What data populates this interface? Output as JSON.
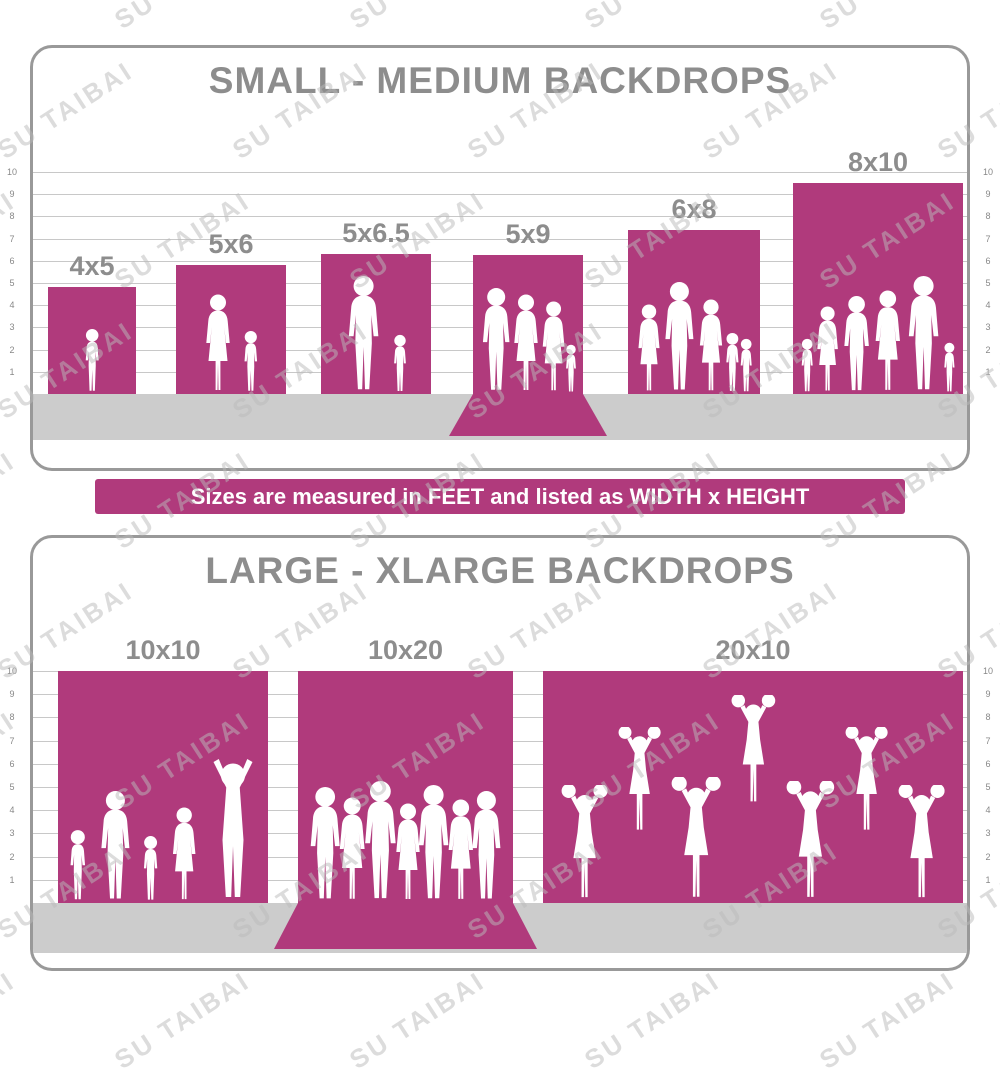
{
  "watermark": {
    "text": "SU TAIBAI"
  },
  "banner": {
    "text": "Sizes are measured in FEET and listed as WIDTH x HEIGHT"
  },
  "colors": {
    "backdrop_magenta": "#b03a7c",
    "title_gray": "#8d8d8d",
    "border_gray": "#999999",
    "floor_gray": "#cccccc",
    "grid_gray": "#c8c8c8",
    "tick_gray": "#888888",
    "silhouette_white": "#ffffff"
  },
  "chart_data": [
    {
      "type": "bar",
      "title": "SMALL - MEDIUM BACKDROPS",
      "categories": [
        "4x5",
        "5x6",
        "5x6.5",
        "5x9",
        "6x8",
        "8x10"
      ],
      "series": [
        {
          "name": "width_ft",
          "values": [
            4,
            5,
            5,
            5,
            6,
            8
          ]
        },
        {
          "name": "height_ft",
          "values": [
            5,
            6,
            6.5,
            9,
            8,
            10
          ]
        }
      ],
      "unit": "feet",
      "axis_ticks": [
        1,
        2,
        3,
        4,
        5,
        6,
        7,
        8,
        9,
        10
      ],
      "ylim": [
        0,
        10
      ],
      "grid": true,
      "axis_sides": [
        "left",
        "right"
      ],
      "note": "sizes listed as WIDTH x HEIGHT in feet; drawing not exactly to scale",
      "figures": [
        [
          "girl-toddler"
        ],
        [
          "woman",
          "child"
        ],
        [
          "man",
          "boy"
        ],
        [
          "man",
          "woman",
          "woman",
          "toddler"
        ],
        [
          "woman",
          "man",
          "woman",
          "child",
          "child"
        ],
        [
          "child",
          "woman",
          "man",
          "woman",
          "man",
          "child"
        ]
      ]
    },
    {
      "type": "bar",
      "title": "LARGE - XLARGE BACKDROPS",
      "categories": [
        "10x10",
        "10x20",
        "20x10"
      ],
      "series": [
        {
          "name": "width_ft",
          "values": [
            10,
            10,
            20
          ]
        },
        {
          "name": "height_ft",
          "values": [
            10,
            20,
            10
          ]
        }
      ],
      "unit": "feet",
      "axis_ticks": [
        1,
        2,
        3,
        4,
        5,
        6,
        7,
        8,
        9,
        10
      ],
      "ylim": [
        0,
        10
      ],
      "grid": true,
      "axis_sides": [
        "left",
        "right"
      ],
      "figures": [
        [
          "child",
          "man",
          "child",
          "woman",
          "cheering-adult"
        ],
        [
          "man",
          "woman",
          "man",
          "woman",
          "man",
          "woman",
          "man"
        ],
        [
          "cheerleader",
          "cheerleader",
          "cheerleader",
          "cheerleader",
          "cheerleader",
          "cheerleader",
          "cheerleader"
        ]
      ]
    }
  ]
}
